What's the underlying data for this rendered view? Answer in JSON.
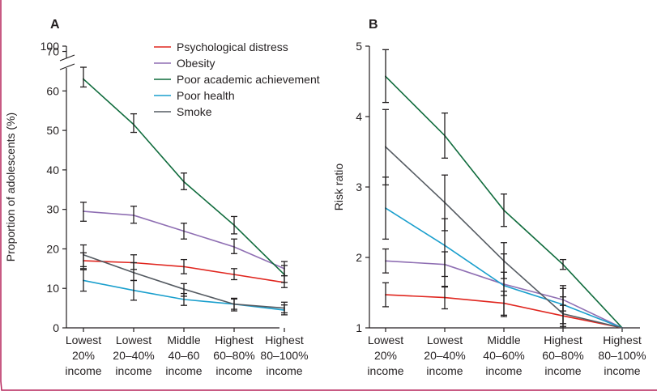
{
  "chart_data": [
    {
      "panel": "A",
      "type": "line",
      "ylabel": "Proportion of adolescents (%)",
      "xlabel": "",
      "categories": [
        [
          "Lowest",
          "20%",
          "income"
        ],
        [
          "Lowest",
          "20–40%",
          "income"
        ],
        [
          "Middle",
          "40–60",
          "income"
        ],
        [
          "Highest",
          "60–80%",
          "income"
        ],
        [
          "Highest",
          "80–100%",
          "income"
        ]
      ],
      "yticks": [
        0,
        10,
        20,
        30,
        40,
        50,
        60,
        70,
        100
      ],
      "ylim": [
        0,
        100
      ],
      "axis_break": [
        72,
        100
      ],
      "grid": false,
      "legend_position": "top-right",
      "series": [
        {
          "name": "Psychological distress",
          "color": "#e0261f",
          "values": [
            17,
            16.5,
            15.5,
            13.5,
            11.5
          ],
          "errors": [
            [
              15,
              19
            ],
            [
              14.8,
              18.5
            ],
            [
              13.7,
              17.3
            ],
            [
              12.2,
              15
            ],
            [
              10.2,
              13.2
            ]
          ]
        },
        {
          "name": "Obesity",
          "color": "#8f6fb3",
          "values": [
            29.5,
            28.5,
            24.5,
            20.5,
            15
          ],
          "errors": [
            [
              27,
              31.8
            ],
            [
              26.5,
              30.8
            ],
            [
              22.5,
              26.5
            ],
            [
              18.8,
              22.5
            ],
            [
              13.2,
              16.8
            ]
          ]
        },
        {
          "name": "Poor academic achievement",
          "color": "#0f6b3c",
          "values": [
            63,
            51.5,
            37,
            26,
            13.5
          ],
          "errors": [
            [
              61,
              66
            ],
            [
              49.5,
              54.2
            ],
            [
              35,
              39.2
            ],
            [
              23.8,
              28.2
            ],
            [
              11.5,
              15.8
            ]
          ]
        },
        {
          "name": "Poor health",
          "color": "#1a9fcd",
          "values": [
            12,
            9.5,
            7.2,
            6,
            4.5
          ],
          "errors": [
            [
              9.3,
              14.7
            ],
            [
              7,
              12
            ],
            [
              5.7,
              8.7
            ],
            [
              4.7,
              7.3
            ],
            [
              3.3,
              5.8
            ]
          ]
        },
        {
          "name": "Smoke",
          "color": "#555b62",
          "values": [
            18.5,
            14,
            9.8,
            6,
            5
          ],
          "errors": [
            [
              15.5,
              21
            ],
            [
              12,
              16.5
            ],
            [
              8,
              11.2
            ],
            [
              4.3,
              7.5
            ],
            [
              3.8,
              6.5
            ]
          ]
        }
      ]
    },
    {
      "panel": "B",
      "type": "line",
      "ylabel": "Risk ratio",
      "xlabel": "",
      "categories": [
        [
          "Lowest",
          "20%",
          "income"
        ],
        [
          "Lowest",
          "20–40%",
          "income"
        ],
        [
          "Middle",
          "40–60%",
          "income"
        ],
        [
          "Highest",
          "60–80%",
          "income"
        ],
        [
          "Highest",
          "80–100%",
          "income"
        ]
      ],
      "yticks": [
        1,
        2,
        3,
        4,
        5
      ],
      "ylim": [
        1,
        5
      ],
      "grid": false,
      "series": [
        {
          "name": "Psychological distress",
          "color": "#e0261f",
          "values": [
            1.47,
            1.43,
            1.35,
            1.17,
            1.0
          ],
          "errors": [
            [
              1.3,
              1.64
            ],
            [
              1.27,
              1.59
            ],
            [
              1.18,
              1.52
            ],
            [
              1.02,
              1.32
            ],
            null
          ]
        },
        {
          "name": "Obesity",
          "color": "#8f6fb3",
          "values": [
            1.95,
            1.9,
            1.62,
            1.4,
            1.0
          ],
          "errors": [
            [
              1.78,
              2.12
            ],
            [
              1.73,
              2.08
            ],
            [
              1.46,
              1.79
            ],
            [
              1.24,
              1.56
            ],
            null
          ]
        },
        {
          "name": "Poor academic achievement",
          "color": "#0f6b3c",
          "values": [
            4.57,
            3.73,
            2.67,
            1.9,
            1.0
          ],
          "errors": [
            [
              4.2,
              4.95
            ],
            [
              3.41,
              4.05
            ],
            [
              2.44,
              2.9
            ],
            [
              1.83,
              1.97
            ],
            null
          ]
        },
        {
          "name": "Poor health",
          "color": "#1a9fcd",
          "values": [
            2.7,
            2.17,
            1.6,
            1.33,
            1.0
          ],
          "errors": [
            [
              2.26,
              3.14
            ],
            [
              1.58,
              2.55
            ],
            [
              1.16,
              2.05
            ],
            [
              1.06,
              1.6
            ],
            null
          ]
        },
        {
          "name": "Smoke",
          "color": "#555b62",
          "values": [
            3.57,
            2.78,
            1.95,
            1.2,
            1.0
          ],
          "errors": [
            [
              3.03,
              4.1
            ],
            [
              2.38,
              3.17
            ],
            [
              1.7,
              2.21
            ],
            [
              1.0,
              1.44
            ],
            null
          ]
        }
      ]
    }
  ]
}
